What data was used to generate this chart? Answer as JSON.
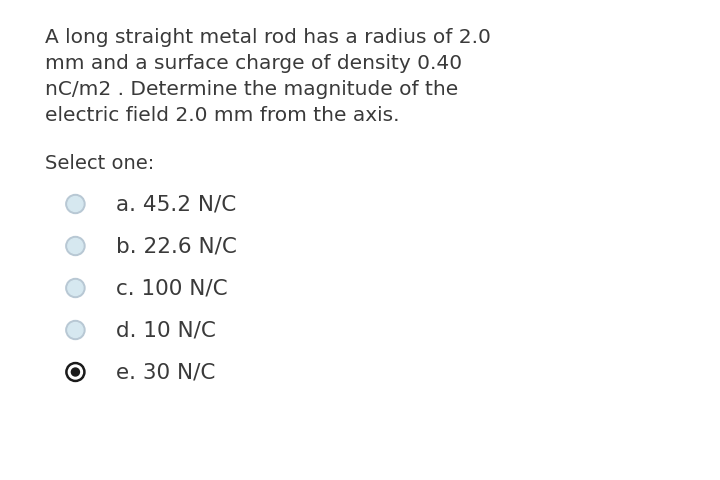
{
  "fig_bg": "#ffffff",
  "content_bg": "#d6e8f0",
  "border_color": "#c0d0dc",
  "question_text_lines": [
    "A long straight metal rod has a radius of 2.0",
    "mm and a surface charge of density 0.40",
    "nC/m2 . Determine the magnitude of the",
    "electric field 2.0 mm from the axis."
  ],
  "select_one_label": "Select one:",
  "options": [
    {
      "label": "a. 45.2 N/C",
      "selected": false
    },
    {
      "label": "b. 22.6 N/C",
      "selected": false
    },
    {
      "label": "c. 100 N/C",
      "selected": false
    },
    {
      "label": "d. 10 N/C",
      "selected": false
    },
    {
      "label": "e. 30 N/C",
      "selected": true
    }
  ],
  "text_color": "#3a3a3a",
  "radio_unsel_outer": "#b8c8d4",
  "radio_unsel_inner": "#d6e8f0",
  "radio_sel_outer": "#1a1a1a",
  "radio_sel_white": "#ffffff",
  "radio_sel_inner": "#1a1a1a",
  "font_size_question": 14.5,
  "font_size_options": 15.5,
  "font_size_select": 14.0
}
